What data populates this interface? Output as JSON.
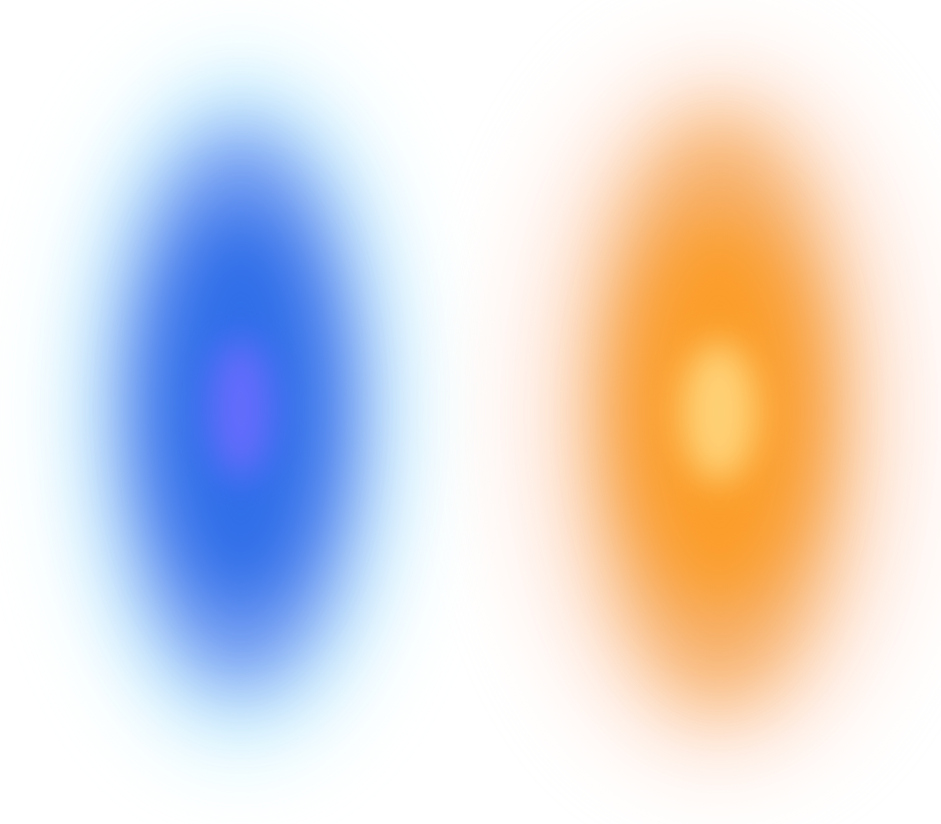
{
  "colors": {
    "background": "#ffffff",
    "blue_orb": {
      "halo": "#bff3ff",
      "body": "#5f8cf0",
      "core": "#2f6ee8",
      "center": "#6b6cff"
    },
    "orange_orb": {
      "halo": "#ffd9c8",
      "body": "#f6a756",
      "core": "#fb9d2a",
      "center": "#ffd47a"
    }
  }
}
